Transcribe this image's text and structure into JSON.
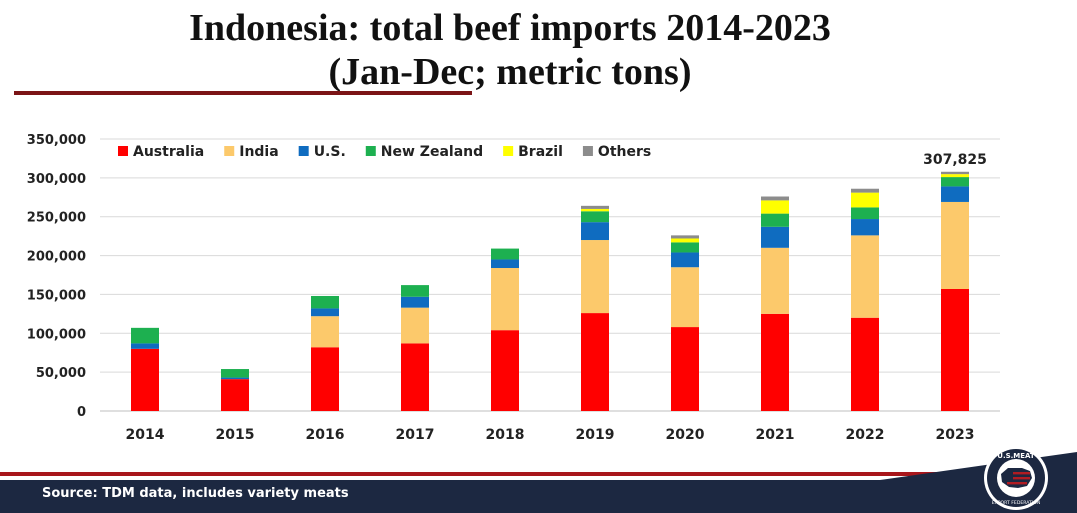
{
  "title_line1": "Indonesia: total beef imports 2014-2023",
  "title_line2": "(Jan-Dec; metric tons)",
  "footer": {
    "source": "Source: TDM data, includes variety meats"
  },
  "logo": {
    "text_top": "U.S.MEAT",
    "text_bottom": "EXPORT FEDERATION"
  },
  "colors": {
    "accent_rule": "#7b1416",
    "footer_navy": "#1c2841",
    "footer_red": "#a8161b"
  },
  "chart_data": {
    "type": "bar",
    "stacked": true,
    "categories": [
      "2014",
      "2015",
      "2016",
      "2017",
      "2018",
      "2019",
      "2020",
      "2021",
      "2022",
      "2023"
    ],
    "ylim": [
      0,
      350000
    ],
    "yticks": [
      0,
      50000,
      100000,
      150000,
      200000,
      250000,
      300000,
      350000
    ],
    "ytick_labels": [
      "0",
      "50,000",
      "100,000",
      "150,000",
      "200,000",
      "250,000",
      "300,000",
      "350,000"
    ],
    "grid": true,
    "legend_position": "top-left",
    "series": [
      {
        "name": "Australia",
        "color": "#ff0000",
        "values": [
          80000,
          41000,
          82000,
          87000,
          104000,
          126000,
          108000,
          125000,
          120000,
          157000
        ]
      },
      {
        "name": "India",
        "color": "#fcc96b",
        "values": [
          0,
          0,
          40000,
          46000,
          80000,
          94000,
          77000,
          85000,
          106000,
          112000
        ]
      },
      {
        "name": "U.S.",
        "color": "#0f6cc0",
        "values": [
          7000,
          2000,
          10000,
          14000,
          11000,
          23000,
          19000,
          27000,
          21000,
          20000
        ]
      },
      {
        "name": "New Zealand",
        "color": "#1db050",
        "values": [
          20000,
          11000,
          16000,
          15000,
          14000,
          14000,
          13000,
          17000,
          15000,
          12000
        ]
      },
      {
        "name": "Brazil",
        "color": "#ffff00",
        "values": [
          0,
          0,
          0,
          0,
          0,
          3000,
          5000,
          17000,
          19000,
          3800
        ]
      },
      {
        "name": "Others",
        "color": "#8c8c8c",
        "values": [
          0,
          0,
          0,
          0,
          0,
          4000,
          4000,
          5000,
          5000,
          3025
        ]
      }
    ],
    "annotations": [
      {
        "category": "2023",
        "text": "307,825"
      }
    ]
  }
}
